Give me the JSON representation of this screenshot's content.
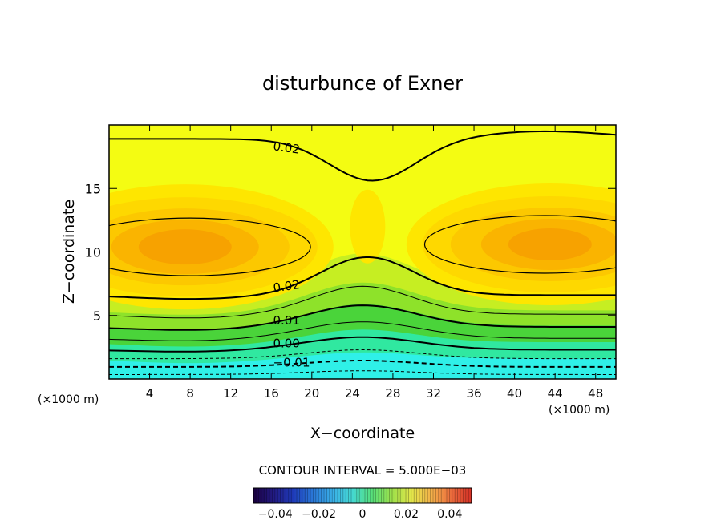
{
  "chart_data": {
    "type": "contour",
    "title": "disturbunce of Exner",
    "xlabel": "X−coordinate",
    "ylabel": "Z−coordinate",
    "x_unit_left": "(×1000 m)",
    "x_unit_right": "(×1000 m)",
    "xlim": [
      0,
      50
    ],
    "ylim": [
      0,
      20
    ],
    "x_ticks": [
      4,
      8,
      12,
      16,
      20,
      24,
      28,
      32,
      36,
      40,
      44,
      48
    ],
    "y_ticks": [
      5,
      10,
      15
    ],
    "contour_interval_text": "CONTOUR INTERVAL = 5.000E−03",
    "contour_labels": [
      {
        "text": "0.02",
        "x": 17.5,
        "z": 18.2
      },
      {
        "text": "0.02",
        "x": 17.5,
        "z": 7.3
      },
      {
        "text": "0.01",
        "x": 17.5,
        "z": 4.6
      },
      {
        "text": "0.00",
        "x": 17.5,
        "z": 2.8
      },
      {
        "text": "−0.01",
        "x": 18.0,
        "z": 1.3
      }
    ],
    "colorbar": {
      "range": [
        -0.05,
        0.05
      ],
      "tick_values": [
        -0.04,
        -0.02,
        0,
        0.02,
        0.04
      ],
      "tick_labels": [
        "−0.04",
        "−0.02",
        "0",
        "0.02",
        "0.04"
      ]
    },
    "field_colors": [
      "#2ff0e8",
      "#30e8a0",
      "#4ad43a",
      "#8ee22a",
      "#c6ee22",
      "#f4fc12",
      "#fee600",
      "#fed800",
      "#fcc800",
      "#fab400",
      "#f7a200",
      "#f49400"
    ],
    "colorbar_colors": [
      "#1a0040",
      "#221a82",
      "#1e3ab8",
      "#2a78d8",
      "#3ab0e8",
      "#44d8d0",
      "#58e07a",
      "#9ee04a",
      "#e4e64a",
      "#f4b04a",
      "#ea6a3c",
      "#d63026"
    ]
  }
}
